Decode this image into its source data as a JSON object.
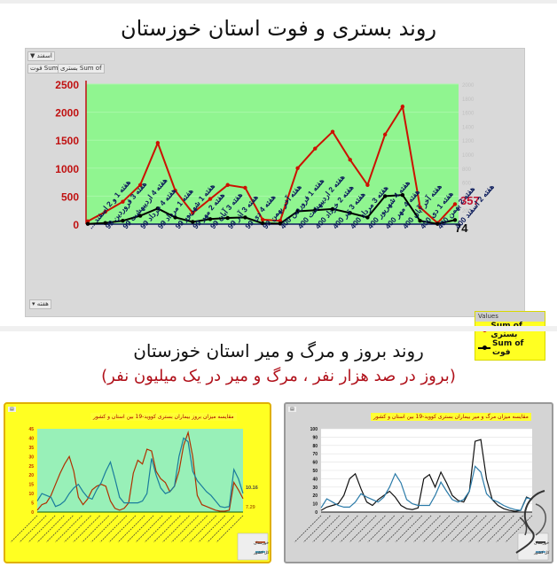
{
  "header": {
    "title": "روند بستری و فوت استان خوزستان"
  },
  "pivot": {
    "filter_button": "اسفند",
    "field_buttons": [
      "Sum of فوت",
      "Sum of بستری"
    ],
    "axis_button": "هفته",
    "legend_header": "Values",
    "legend_items": [
      {
        "label": "Sum of بستری",
        "color": "#cc1100"
      },
      {
        "label": "Sum of فوت",
        "color": "#000000"
      }
    ],
    "end_label_red": "357",
    "end_label_black": "74"
  },
  "section2": {
    "title": "روند بروز و مرگ و میر استان خوزستان",
    "subtitle": "(بروز در صد هزار نفر ، مرگ و میر در یک میلیون نفر)"
  },
  "chart_data": [
    {
      "type": "line",
      "title": "روند بستری و فوت استان خوزستان",
      "xlabel": "",
      "ylabel": "",
      "ylim": [
        0,
        2500
      ],
      "y_ticks": [
        0,
        500,
        1000,
        1500,
        2000,
        2500
      ],
      "y2_ticks": [
        0,
        200,
        400,
        600,
        800,
        1000,
        1200,
        1400,
        1600,
        1800,
        2000
      ],
      "grid": true,
      "legend_position": "bottom-right",
      "categories": [
        "هفته 1 و 2 اسفند ...",
        "هفته 3 فروردین 99",
        "هفته 4 اردیبهشت 99",
        "هفته 4 خرداد 99",
        "هفته 1 مرداد 99",
        "هفته 1 شهریور 99",
        "هفته 2 مهر 99",
        "هفته 3 آبان 99",
        "هفته 3 آذر 99",
        "هفته 4 دی 99",
        "هفته آخر بهمن 99",
        "هفته 1 فروردین 400",
        "هفته 2 اردیبهشت 400",
        "هفته 2 خرداد 400",
        "هفته 3 تیر 400",
        "هفته 3 مرداد 400",
        "هفته 4 شهریور 400",
        "هفته 4 مهر 400",
        "هفته آخر آبان 400",
        "هفته 1 دی 400",
        "هفته 2 بهمن 400",
        "هفته 2 اسفند 400"
      ],
      "series": [
        {
          "name": "Sum of بستری",
          "color": "#cc1100",
          "values": [
            50,
            220,
            400,
            700,
            1450,
            600,
            200,
            450,
            700,
            650,
            80,
            60,
            1000,
            1350,
            1650,
            1150,
            700,
            1600,
            2100,
            300,
            20,
            357
          ]
        },
        {
          "name": "Sum of فوت",
          "color": "#000000",
          "values": [
            5,
            20,
            60,
            150,
            280,
            120,
            40,
            90,
            110,
            120,
            15,
            10,
            230,
            250,
            270,
            200,
            120,
            500,
            520,
            60,
            5,
            74
          ]
        }
      ],
      "end_labels": {
        "Sum of بستری": 357,
        "Sum of فوت": 74
      }
    },
    {
      "type": "line",
      "title": "مقایسه میزان بروز بیماران بستری کووید-19 بین استان و کشور",
      "ylim": [
        0,
        45
      ],
      "y_ticks": [
        0,
        5,
        10,
        15,
        20,
        25,
        30,
        35,
        40,
        45
      ],
      "legend_position": "bottom-right",
      "series": [
        {
          "name": "خوزستان",
          "color": "#b03000",
          "values": [
            1,
            4,
            5,
            9,
            15,
            21,
            26,
            30,
            22,
            8,
            4,
            7,
            12,
            14,
            15,
            14,
            6,
            2,
            1,
            2,
            5,
            21,
            28,
            26,
            34,
            33,
            22,
            18,
            16,
            11,
            14,
            22,
            36,
            43,
            30,
            9,
            4,
            3,
            2,
            1,
            0.5,
            0.5,
            1,
            16,
            12,
            7.29
          ]
        },
        {
          "name": "کل کشور",
          "color": "#1a7c9c",
          "values": [
            6,
            10,
            9,
            8,
            3,
            4,
            6,
            10,
            13,
            15,
            11,
            8,
            7,
            12,
            16,
            22,
            27,
            18,
            8,
            5,
            5,
            5,
            5,
            6,
            10,
            29,
            20,
            13,
            10,
            11,
            14,
            30,
            40,
            38,
            22,
            17,
            14,
            11,
            9,
            6,
            3,
            2.5,
            3,
            23,
            18,
            10.16
          ]
        }
      ],
      "end_labels": {
        "خوزستان": 7.29,
        "کل کشور": 10.16
      }
    },
    {
      "type": "line",
      "title": "مقایسه میزان مرگ و میر بیماران بستری کووید-19 بین استان و کشور",
      "ylim": [
        0,
        100
      ],
      "y_ticks": [
        0,
        10,
        20,
        30,
        40,
        50,
        60,
        70,
        80,
        90,
        100
      ],
      "legend_position": "bottom-right",
      "series": [
        {
          "name": "خوزستان",
          "color": "#111111",
          "values": [
            2,
            6,
            8,
            10,
            20,
            40,
            46,
            28,
            12,
            8,
            15,
            20,
            25,
            18,
            8,
            4,
            3,
            5,
            40,
            45,
            30,
            48,
            35,
            20,
            14,
            12,
            25,
            85,
            87,
            40,
            15,
            8,
            4,
            2,
            1,
            2,
            18,
            15
          ]
        },
        {
          "name": "کل کشور",
          "color": "#2a7aa8",
          "values": [
            5,
            16,
            12,
            8,
            6,
            6,
            12,
            22,
            18,
            15,
            12,
            18,
            30,
            46,
            35,
            15,
            10,
            8,
            8,
            8,
            20,
            36,
            25,
            15,
            12,
            15,
            25,
            55,
            48,
            22,
            15,
            12,
            8,
            5,
            3,
            2,
            17,
            15.5
          ]
        }
      ]
    }
  ]
}
